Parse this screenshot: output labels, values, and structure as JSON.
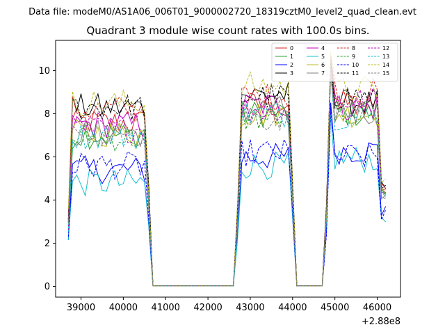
{
  "figure": {
    "suptitle": "Data file: modeM0/AS1A06_006T01_9000002720_18319cztM0_level2_quad_clean.evt"
  },
  "chart_data": {
    "type": "line",
    "title": "Quadrant 3 module wise count rates with 100.0s bins.",
    "xlabel": "",
    "ylabel": "",
    "x_offset_label": "+2.88e8",
    "xlim": [
      38400,
      46550
    ],
    "ylim": [
      -0.5,
      11.4
    ],
    "xticks": [
      39000,
      40000,
      41000,
      42000,
      43000,
      44000,
      45000,
      46000
    ],
    "xtick_labels": [
      "39000",
      "40000",
      "41000",
      "42000",
      "43000",
      "44000",
      "45000",
      "46000"
    ],
    "yticks": [
      0,
      2,
      4,
      6,
      8,
      10
    ],
    "ytick_labels": [
      "0",
      "2",
      "4",
      "6",
      "8",
      "10"
    ],
    "grid": false,
    "legend_position": "upper right",
    "legend_columns": 4,
    "segments": [
      {
        "start": 38700,
        "end": 40650,
        "on": true
      },
      {
        "start": 40650,
        "end": 42700,
        "on": false
      },
      {
        "start": 42700,
        "end": 44100,
        "on": true
      },
      {
        "start": 44100,
        "end": 44800,
        "on": false
      },
      {
        "start": 44800,
        "end": 46200,
        "on": true
      }
    ],
    "series": [
      {
        "name": "0",
        "color": "#d62728",
        "style": "solid",
        "levels": [
          7.6,
          8.4,
          8.5
        ]
      },
      {
        "name": "1",
        "color": "#2ca02c",
        "style": "solid",
        "levels": [
          7.0,
          8.0,
          8.0
        ]
      },
      {
        "name": "2",
        "color": "#0000ff",
        "style": "solid",
        "levels": [
          5.4,
          6.0,
          6.3
        ]
      },
      {
        "name": "3",
        "color": "#000000",
        "style": "solid",
        "levels": [
          8.3,
          8.9,
          8.5
        ]
      },
      {
        "name": "4",
        "color": "#c000c0",
        "style": "solid",
        "levels": [
          7.5,
          8.4,
          8.3
        ]
      },
      {
        "name": "5",
        "color": "#17becf",
        "style": "solid",
        "levels": [
          4.8,
          5.6,
          5.9
        ]
      },
      {
        "name": "6",
        "color": "#bcbd22",
        "style": "solid",
        "levels": [
          7.1,
          8.0,
          8.0
        ]
      },
      {
        "name": "7",
        "color": "#7f7f7f",
        "style": "solid",
        "levels": [
          7.1,
          8.2,
          8.1
        ]
      },
      {
        "name": "8",
        "color": "#d62728",
        "style": "dashed",
        "levels": [
          8.2,
          8.8,
          9.0
        ]
      },
      {
        "name": "9",
        "color": "#2ca02c",
        "style": "dashed",
        "levels": [
          6.9,
          7.8,
          8.0
        ]
      },
      {
        "name": "10",
        "color": "#0000ff",
        "style": "dashed",
        "levels": [
          5.6,
          6.2,
          6.0
        ]
      },
      {
        "name": "11",
        "color": "#000000",
        "style": "dashed",
        "levels": [
          8.3,
          8.8,
          8.8
        ]
      },
      {
        "name": "12",
        "color": "#c000c0",
        "style": "dashed",
        "levels": [
          7.3,
          8.2,
          8.6
        ]
      },
      {
        "name": "13",
        "color": "#17becf",
        "style": "dashed",
        "levels": [
          7.0,
          8.0,
          7.9
        ]
      },
      {
        "name": "14",
        "color": "#bcbd22",
        "style": "dashed",
        "levels": [
          8.5,
          9.3,
          9.1
        ]
      },
      {
        "name": "15",
        "color": "#7f7f7f",
        "style": "dashed",
        "levels": [
          7.1,
          7.8,
          8.0
        ]
      }
    ]
  }
}
